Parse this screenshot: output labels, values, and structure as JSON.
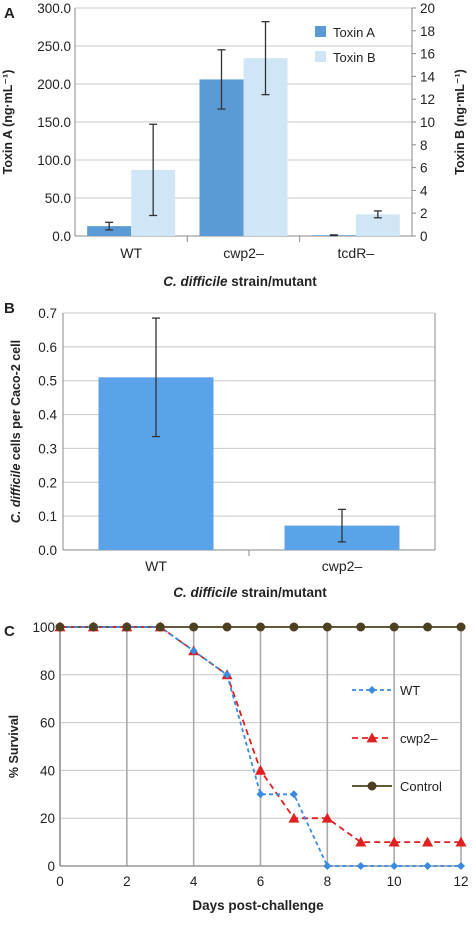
{
  "colors": {
    "toxin_a": "#5b9bd5",
    "toxin_b": "#cfe6f7",
    "panel_b_bar": "#5ba3e8",
    "wt_line": "#3a8be0",
    "cwp2_line": "#e02020",
    "control_line": "#4d4020",
    "grid": "#c8c8c8",
    "axis": "#888888",
    "error_bar": "#333333"
  },
  "chart_data": [
    {
      "panel": "A",
      "type": "bar",
      "categories": [
        "WT",
        "cwp2–",
        "tcdR–"
      ],
      "series": [
        {
          "name": "Toxin A",
          "axis": "left",
          "values": [
            13,
            206,
            1
          ],
          "error": [
            5,
            39,
            0.5
          ]
        },
        {
          "name": "Toxin B",
          "axis": "right",
          "values": [
            5.8,
            15.6,
            1.9
          ],
          "error": [
            4,
            3.2,
            0.3
          ]
        }
      ],
      "xlabel_italic": "C. difficile",
      "xlabel_rest": " strain/mutant",
      "ylabel_left": "Toxin A (ng·mL⁻¹)",
      "ylabel_right": "Toxin B (ng·mL⁻¹)",
      "ylim_left": [
        0,
        300
      ],
      "ylim_right": [
        0,
        20
      ],
      "yticks_left": [
        "0.0",
        "50.0",
        "100.0",
        "150.0",
        "200.0",
        "250.0",
        "300.0"
      ],
      "yticks_right": [
        "0",
        "2",
        "4",
        "6",
        "8",
        "10",
        "12",
        "14",
        "16",
        "18",
        "20"
      ],
      "legend": [
        "Toxin A",
        "Toxin B"
      ],
      "legend_position": "top-right",
      "grid": true
    },
    {
      "panel": "B",
      "type": "bar",
      "categories": [
        "WT",
        "cwp2–"
      ],
      "values": [
        0.51,
        0.072
      ],
      "error": [
        0.175,
        0.048
      ],
      "xlabel_italic": "C. difficile",
      "xlabel_rest": " strain/mutant",
      "ylabel_italic": "C. difficile",
      "ylabel_rest": " cells per Caco-2 cell",
      "ylim": [
        0,
        0.7
      ],
      "yticks": [
        "0.0",
        "0.1",
        "0.2",
        "0.3",
        "0.4",
        "0.5",
        "0.6",
        "0.7"
      ],
      "grid": true
    },
    {
      "panel": "C",
      "type": "line",
      "x": [
        0,
        1,
        2,
        3,
        4,
        5,
        6,
        7,
        8,
        9,
        10,
        11,
        12
      ],
      "series": [
        {
          "name": "WT",
          "values": [
            100,
            100,
            100,
            100,
            90,
            80,
            30,
            30,
            0,
            0,
            0,
            0,
            0
          ]
        },
        {
          "name": "cwp2–",
          "values": [
            100,
            100,
            100,
            100,
            90,
            80,
            40,
            20,
            20,
            10,
            10,
            10,
            10
          ]
        },
        {
          "name": "Control",
          "values": [
            100,
            100,
            100,
            100,
            100,
            100,
            100,
            100,
            100,
            100,
            100,
            100,
            100
          ]
        }
      ],
      "xlabel": "Days post-challenge",
      "ylabel": "% Survival",
      "xlim": [
        0,
        12
      ],
      "ylim": [
        0,
        100
      ],
      "xticks": [
        "0",
        "2",
        "4",
        "6",
        "8",
        "10",
        "12"
      ],
      "yticks": [
        "0",
        "20",
        "40",
        "60",
        "80",
        "100"
      ],
      "legend": [
        "WT",
        "cwp2–",
        "Control"
      ],
      "legend_position": "right",
      "grid": true
    }
  ]
}
